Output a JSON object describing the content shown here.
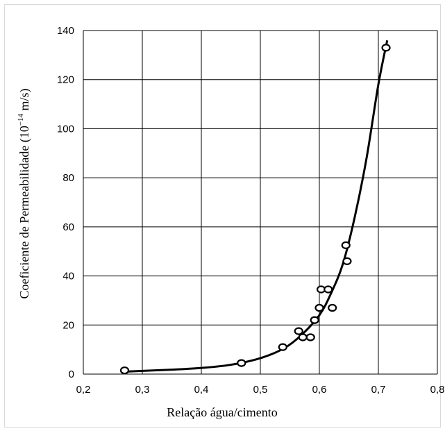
{
  "chart_data": {
    "type": "scatter",
    "xlabel": "Relação água/cimento",
    "ylabel": "Coeficiente de Permeabilidade   (10",
    "ylabel_sup": "−14",
    "ylabel_unit": " m/s)",
    "xlim": [
      0.2,
      0.8
    ],
    "ylim": [
      0,
      140
    ],
    "xticks": [
      "0,2",
      "0,3",
      "0,4",
      "0,5",
      "0,6",
      "0,7",
      "0,8"
    ],
    "yticks": [
      "0",
      "20",
      "40",
      "60",
      "80",
      "100",
      "120",
      "140"
    ],
    "grid": true,
    "series": [
      {
        "marker": "circle",
        "x": [
          0.27,
          0.468,
          0.538,
          0.565,
          0.572,
          0.585,
          0.592,
          0.6,
          0.603,
          0.615,
          0.622,
          0.645,
          0.647,
          0.713
        ],
        "y": [
          1.5,
          4.5,
          11,
          17.5,
          15,
          15,
          22,
          27,
          34.5,
          34.5,
          27,
          52.5,
          46,
          133
        ]
      },
      {
        "marker": "none",
        "line": "smooth",
        "x": [
          0.27,
          0.3,
          0.35,
          0.4,
          0.45,
          0.5,
          0.54,
          0.57,
          0.6,
          0.62,
          0.64,
          0.66,
          0.68,
          0.7,
          0.715
        ],
        "y": [
          1,
          1.3,
          1.8,
          2.5,
          3.8,
          6.5,
          10.5,
          16,
          24,
          33,
          45,
          64,
          88,
          118,
          136
        ]
      }
    ]
  }
}
